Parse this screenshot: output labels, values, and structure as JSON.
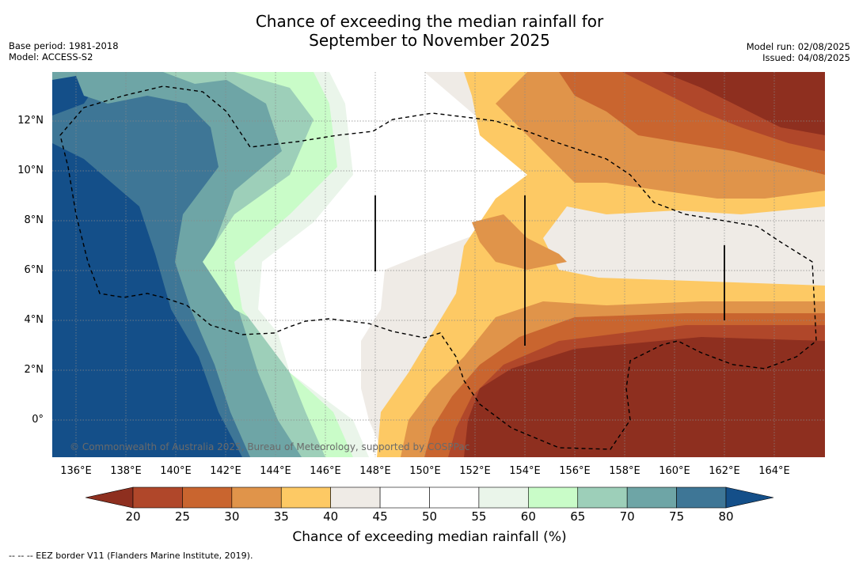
{
  "title_line1": "Chance of exceeding the median rainfall for",
  "title_line2": "September to November 2025",
  "base_period": "Base period: 1981-2018",
  "model": "Model: ACCESS-S2",
  "model_run": "Model run: 02/08/2025",
  "issued": "Issued: 04/08/2025",
  "copyright": "© Commonwealth of Australia 2025, Bureau of Meteorology, supported by COSPPac",
  "colorbar": {
    "label": "Chance of exceeding median rainfall (%)",
    "ticks": [
      "20",
      "25",
      "30",
      "35",
      "40",
      "45",
      "50",
      "55",
      "60",
      "65",
      "70",
      "75",
      "80"
    ],
    "colors": [
      "#b0472a",
      "#c9652f",
      "#e0944a",
      "#fdc964",
      "#efebe6",
      "#ffffff",
      "#ffffff",
      "#eaf5ea",
      "#c9fcc8",
      "#9dcfb9",
      "#6ea5a6",
      "#3e7696"
    ],
    "low_color": "#8e2f1f",
    "high_color": "#144f89"
  },
  "footnote": "-- -- -- EEZ border V11 (Flanders Marine Institute, 2019).",
  "lat_labels": [
    "12°N",
    "10°N",
    "8°N",
    "6°N",
    "4°N",
    "2°N",
    "0°"
  ],
  "lon_labels": [
    "136°E",
    "138°E",
    "140°E",
    "142°E",
    "144°E",
    "146°E",
    "148°E",
    "150°E",
    "152°E",
    "154°E",
    "156°E",
    "158°E",
    "160°E",
    "162°E",
    "164°E"
  ]
}
